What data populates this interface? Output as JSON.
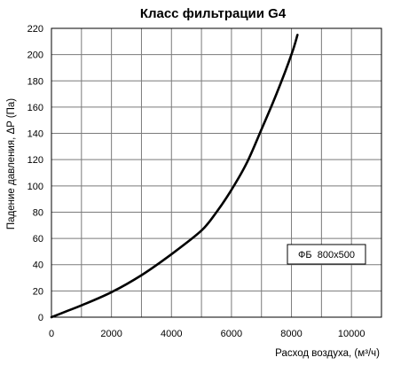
{
  "chart_data": {
    "type": "line",
    "title": "Класс фильтрации G4",
    "xlabel": "Расход воздуха, (м³/ч)",
    "ylabel": "Падение давления, ΔP (Па)",
    "xlim": [
      0,
      11000
    ],
    "ylim": [
      0,
      220
    ],
    "x_ticks": [
      0,
      2000,
      4000,
      6000,
      8000,
      10000
    ],
    "x_tick_labels": [
      "0",
      "2000",
      "4000",
      "6000",
      "8000",
      "10000"
    ],
    "y_ticks": [
      0,
      20,
      40,
      60,
      80,
      100,
      120,
      140,
      160,
      180,
      200,
      220
    ],
    "y_tick_labels": [
      "0",
      "20",
      "40",
      "60",
      "80",
      "100",
      "120",
      "140",
      "160",
      "180",
      "200",
      "220"
    ],
    "grid": true,
    "legend_position": "right",
    "series": [
      {
        "name": "ФБ  800х500",
        "color": "#000000",
        "x": [
          0,
          500,
          1000,
          2000,
          3000,
          4000,
          5000,
          5500,
          6000,
          6500,
          7000,
          7500,
          8000,
          8200
        ],
        "y": [
          0,
          4.5,
          9,
          19,
          32,
          48,
          66,
          80,
          97,
          117,
          143,
          170,
          200,
          215
        ]
      }
    ]
  }
}
